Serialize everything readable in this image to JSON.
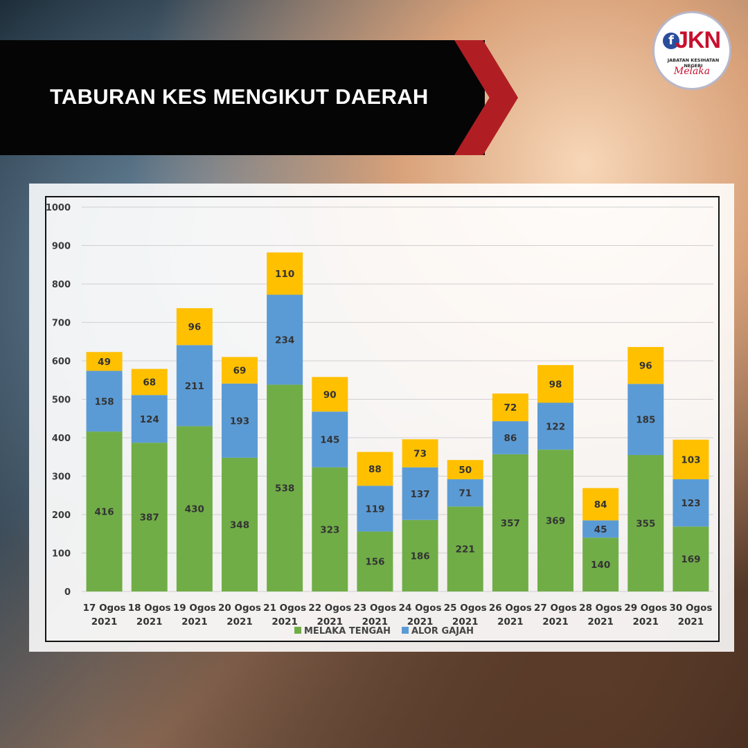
{
  "header": {
    "title": "TABURAN KES MENGIKUT DAERAH"
  },
  "logo": {
    "letter": "f",
    "mark": "JKN",
    "subtitle": "JABATAN KESIHATAN NEGERI",
    "script": "Melaka"
  },
  "colors": {
    "melaka_tengah": "#70ad47",
    "alor_gajah": "#5b9bd5",
    "jasin": "#ffc000",
    "banner_red": "#b01e23"
  },
  "chart_data": {
    "type": "bar",
    "stacked": true,
    "title": "",
    "xlabel": "",
    "ylabel": "",
    "ylim": [
      0,
      1000
    ],
    "yticks": [
      0,
      100,
      200,
      300,
      400,
      500,
      600,
      700,
      800,
      900,
      1000
    ],
    "grid": true,
    "legend_position": "bottom",
    "categories": [
      [
        "17 Ogos",
        "2021"
      ],
      [
        "18 Ogos",
        "2021"
      ],
      [
        "19 Ogos",
        "2021"
      ],
      [
        "20 Ogos",
        "2021"
      ],
      [
        "21 Ogos",
        "2021"
      ],
      [
        "22 Ogos",
        "2021"
      ],
      [
        "23 Ogos",
        "2021"
      ],
      [
        "24 Ogos",
        "2021"
      ],
      [
        "25 Ogos",
        "2021"
      ],
      [
        "26 Ogos",
        "2021"
      ],
      [
        "27 Ogos",
        "2021"
      ],
      [
        "28 Ogos",
        "2021"
      ],
      [
        "29 Ogos",
        "2021"
      ],
      [
        "30 Ogos",
        "2021"
      ]
    ],
    "series": [
      {
        "name": "MELAKA TENGAH",
        "color": "#70ad47",
        "legend": true,
        "values": [
          416,
          387,
          430,
          348,
          538,
          323,
          156,
          186,
          221,
          357,
          369,
          140,
          355,
          169
        ]
      },
      {
        "name": "ALOR GAJAH",
        "color": "#5b9bd5",
        "legend": true,
        "values": [
          158,
          124,
          211,
          193,
          234,
          145,
          119,
          137,
          71,
          86,
          122,
          45,
          185,
          123
        ]
      },
      {
        "color": "#ffc000",
        "legend": false,
        "values": [
          49,
          68,
          96,
          69,
          110,
          90,
          88,
          73,
          50,
          72,
          98,
          84,
          96,
          103
        ]
      }
    ]
  }
}
